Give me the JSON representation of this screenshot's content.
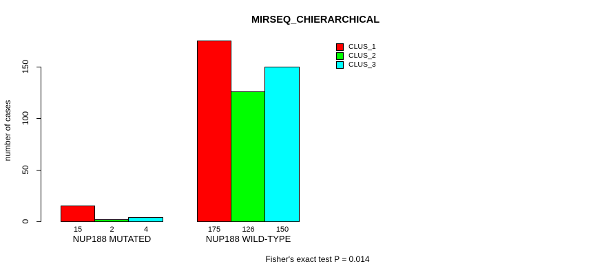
{
  "title": "MIRSEQ_CHIERARCHICAL",
  "y_axis": {
    "label": "number of cases",
    "ticks": [
      0,
      50,
      100,
      150
    ]
  },
  "caption": "Fisher's exact test P = 0.014",
  "legend": {
    "items": [
      {
        "label": "CLUS_1",
        "color": "#ff0000"
      },
      {
        "label": "CLUS_2",
        "color": "#00ff00"
      },
      {
        "label": "CLUS_3",
        "color": "#00ffff"
      }
    ]
  },
  "chart_data": {
    "type": "bar",
    "title": "MIRSEQ_CHIERARCHICAL",
    "categories": [
      "NUP188 MUTATED",
      "NUP188 WILD-TYPE"
    ],
    "series": [
      {
        "name": "CLUS_1",
        "color": "#ff0000",
        "values": [
          15,
          175
        ]
      },
      {
        "name": "CLUS_2",
        "color": "#00ff00",
        "values": [
          2,
          126
        ]
      },
      {
        "name": "CLUS_3",
        "color": "#00ffff",
        "values": [
          4,
          150
        ]
      }
    ],
    "bar_value_labels": [
      [
        15,
        2,
        4
      ],
      [
        175,
        126,
        150
      ]
    ],
    "xlabel": "",
    "ylabel": "number of cases",
    "yticks": [
      0,
      50,
      100,
      150
    ],
    "ylim": [
      0,
      180
    ],
    "grid": false,
    "legend_position": "top-right",
    "annotation": "Fisher's exact test P = 0.014"
  }
}
